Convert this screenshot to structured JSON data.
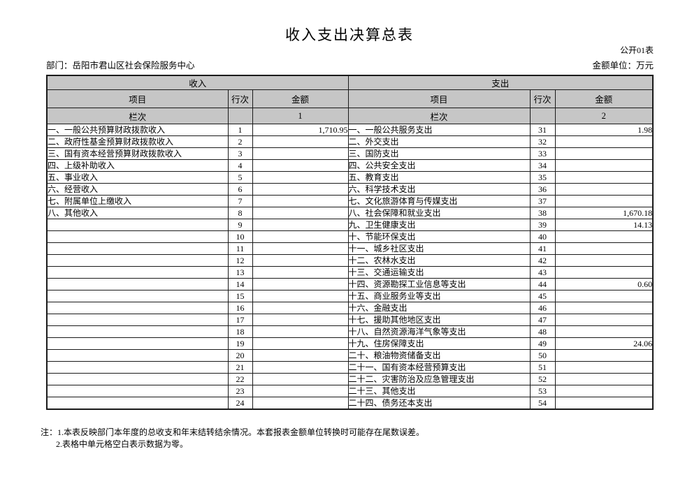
{
  "page": {
    "title": "收入支出决算总表",
    "table_code": "公开01表",
    "department": "部门：岳阳市君山区社会保险服务中心",
    "unit": "金额单位：万元"
  },
  "table": {
    "income_section": "收入",
    "expense_section": "支出",
    "item_header": "项目",
    "line_header": "行次",
    "amount_header": "金额",
    "lanci_label": "栏次",
    "income_col_no": "1",
    "expense_col_no": "2",
    "rows": [
      {
        "income_item": "一、一般公共预算财政拨款收入",
        "income_line": "1",
        "income_amount": "1,710.95",
        "expense_item": "一、一般公共服务支出",
        "expense_line": "31",
        "expense_amount": "1.98"
      },
      {
        "income_item": "二、政府性基金预算财政拨款收入",
        "income_line": "2",
        "income_amount": "",
        "expense_item": "二、外交支出",
        "expense_line": "32",
        "expense_amount": ""
      },
      {
        "income_item": "三、国有资本经营预算财政拨款收入",
        "income_line": "3",
        "income_amount": "",
        "expense_item": "三、国防支出",
        "expense_line": "33",
        "expense_amount": ""
      },
      {
        "income_item": "四、上级补助收入",
        "income_line": "4",
        "income_amount": "",
        "expense_item": "四、公共安全支出",
        "expense_line": "34",
        "expense_amount": ""
      },
      {
        "income_item": "五、事业收入",
        "income_line": "5",
        "income_amount": "",
        "expense_item": "五、教育支出",
        "expense_line": "35",
        "expense_amount": ""
      },
      {
        "income_item": "六、经营收入",
        "income_line": "6",
        "income_amount": "",
        "expense_item": "六、科学技术支出",
        "expense_line": "36",
        "expense_amount": ""
      },
      {
        "income_item": "七、附属单位上缴收入",
        "income_line": "7",
        "income_amount": "",
        "expense_item": "七、文化旅游体育与传媒支出",
        "expense_line": "37",
        "expense_amount": ""
      },
      {
        "income_item": "八、其他收入",
        "income_line": "8",
        "income_amount": "",
        "expense_item": "八、社会保障和就业支出",
        "expense_line": "38",
        "expense_amount": "1,670.18"
      },
      {
        "income_item": "",
        "income_line": "9",
        "income_amount": "",
        "expense_item": "九、卫生健康支出",
        "expense_line": "39",
        "expense_amount": "14.13"
      },
      {
        "income_item": "",
        "income_line": "10",
        "income_amount": "",
        "expense_item": "十、节能环保支出",
        "expense_line": "40",
        "expense_amount": ""
      },
      {
        "income_item": "",
        "income_line": "11",
        "income_amount": "",
        "expense_item": "十一、城乡社区支出",
        "expense_line": "41",
        "expense_amount": ""
      },
      {
        "income_item": "",
        "income_line": "12",
        "income_amount": "",
        "expense_item": "十二、农林水支出",
        "expense_line": "42",
        "expense_amount": ""
      },
      {
        "income_item": "",
        "income_line": "13",
        "income_amount": "",
        "expense_item": "十三、交通运输支出",
        "expense_line": "43",
        "expense_amount": ""
      },
      {
        "income_item": "",
        "income_line": "14",
        "income_amount": "",
        "expense_item": "十四、资源勘探工业信息等支出",
        "expense_line": "44",
        "expense_amount": "0.60"
      },
      {
        "income_item": "",
        "income_line": "15",
        "income_amount": "",
        "expense_item": "十五、商业服务业等支出",
        "expense_line": "45",
        "expense_amount": ""
      },
      {
        "income_item": "",
        "income_line": "16",
        "income_amount": "",
        "expense_item": "十六、金融支出",
        "expense_line": "46",
        "expense_amount": ""
      },
      {
        "income_item": "",
        "income_line": "17",
        "income_amount": "",
        "expense_item": "十七、援助其他地区支出",
        "expense_line": "47",
        "expense_amount": ""
      },
      {
        "income_item": "",
        "income_line": "18",
        "income_amount": "",
        "expense_item": "十八、自然资源海洋气象等支出",
        "expense_line": "48",
        "expense_amount": ""
      },
      {
        "income_item": "",
        "income_line": "19",
        "income_amount": "",
        "expense_item": "十九、住房保障支出",
        "expense_line": "49",
        "expense_amount": "24.06"
      },
      {
        "income_item": "",
        "income_line": "20",
        "income_amount": "",
        "expense_item": "二十、粮油物资储备支出",
        "expense_line": "50",
        "expense_amount": ""
      },
      {
        "income_item": "",
        "income_line": "21",
        "income_amount": "",
        "expense_item": "二十一、国有资本经营预算支出",
        "expense_line": "51",
        "expense_amount": ""
      },
      {
        "income_item": "",
        "income_line": "22",
        "income_amount": "",
        "expense_item": "二十二、灾害防治及应急管理支出",
        "expense_line": "52",
        "expense_amount": ""
      },
      {
        "income_item": "",
        "income_line": "23",
        "income_amount": "",
        "expense_item": "二十三、其他支出",
        "expense_line": "53",
        "expense_amount": ""
      },
      {
        "income_item": "",
        "income_line": "24",
        "income_amount": "",
        "expense_item": "二十四、债务还本支出",
        "expense_line": "54",
        "expense_amount": ""
      }
    ]
  },
  "notes": {
    "line1": "注：1.本表反映部门本年度的总收支和年末结转结余情况。本套报表金额单位转换时可能存在尾数误差。",
    "line2": "2.表格中单元格空白表示数据为零。"
  }
}
